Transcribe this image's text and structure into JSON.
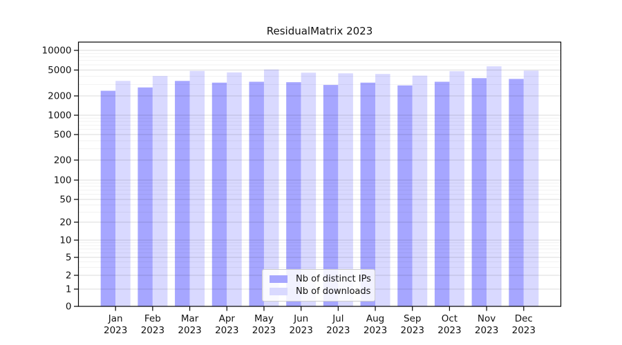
{
  "chart_data": {
    "type": "bar",
    "title": "ResidualMatrix 2023",
    "categories": [
      "Jan",
      "Feb",
      "Mar",
      "Apr",
      "May",
      "Jun",
      "Jul",
      "Aug",
      "Sep",
      "Oct",
      "Nov",
      "Dec"
    ],
    "category_year": "2023",
    "series": [
      {
        "name": "Nb of distinct IPs",
        "color": "#a6a6ff",
        "values": [
          2400,
          2700,
          3400,
          3200,
          3300,
          3250,
          2950,
          3200,
          2900,
          3300,
          3750,
          3650
        ]
      },
      {
        "name": "Nb of downloads",
        "color": "#d9d9ff",
        "values": [
          3400,
          4050,
          4850,
          4600,
          5100,
          4550,
          4450,
          4350,
          4100,
          4800,
          5700,
          4900
        ]
      }
    ],
    "yscale": "symlog",
    "yticks": [
      0,
      1,
      2,
      5,
      10,
      20,
      50,
      100,
      200,
      500,
      1000,
      2000,
      5000,
      10000
    ],
    "ylim": [
      0,
      10000
    ],
    "xlabel": "",
    "ylabel": "",
    "grid": "horizontal major and minor",
    "legend_position": "lower center"
  }
}
